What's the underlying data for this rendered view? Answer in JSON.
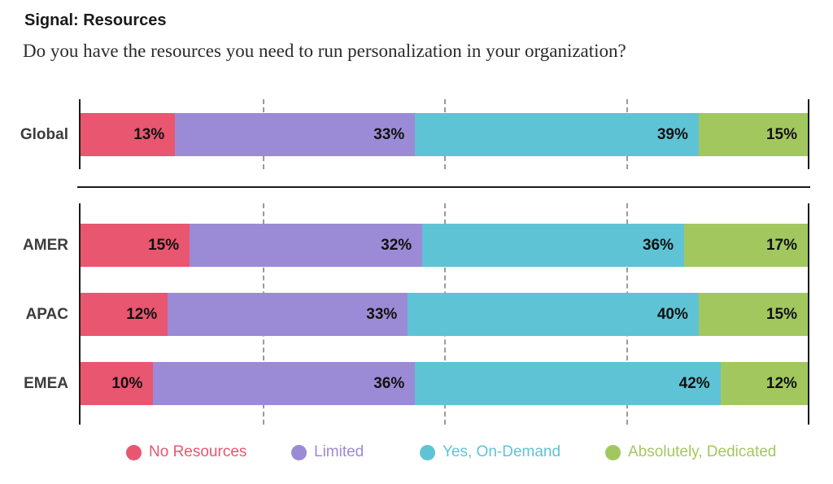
{
  "page": {
    "title": "Signal: Resources",
    "question": "Do you have the resources you need to run personalization in your organization?"
  },
  "legend": {
    "items": [
      {
        "label": "No Resources",
        "color": "#e8566f"
      },
      {
        "label": "Limited",
        "color": "#9b8bd6"
      },
      {
        "label": "Yes, On-Demand",
        "color": "#5fc3d6"
      },
      {
        "label": "Absolutely, Dedicated",
        "color": "#a3c75f"
      }
    ]
  },
  "chart_data": {
    "type": "bar",
    "orientation": "horizontal",
    "stacked": true,
    "unit": "percent",
    "xlim": [
      0,
      100
    ],
    "gridlines_percent": [
      25,
      50,
      75
    ],
    "legend_position": "bottom",
    "title": "Signal: Resources",
    "subtitle": "Do you have the resources you need to run personalization in your organization?",
    "series_names": [
      "No Resources",
      "Limited",
      "Yes, On-Demand",
      "Absolutely, Dedicated"
    ],
    "series_colors": [
      "#e8566f",
      "#9b8bd6",
      "#5fc3d6",
      "#a3c75f"
    ],
    "rows": [
      {
        "category": "Global",
        "values": [
          13,
          33,
          39,
          15
        ],
        "labels": [
          "13%",
          "33%",
          "39%",
          "15%"
        ]
      },
      {
        "category": "AMER",
        "values": [
          15,
          32,
          36,
          17
        ],
        "labels": [
          "15%",
          "32%",
          "36%",
          "17%"
        ]
      },
      {
        "category": "APAC",
        "values": [
          12,
          33,
          40,
          15
        ],
        "labels": [
          "12%",
          "33%",
          "40%",
          "15%"
        ]
      },
      {
        "category": "EMEA",
        "values": [
          10,
          36,
          42,
          12
        ],
        "labels": [
          "10%",
          "36%",
          "42%",
          "12%"
        ]
      }
    ]
  }
}
